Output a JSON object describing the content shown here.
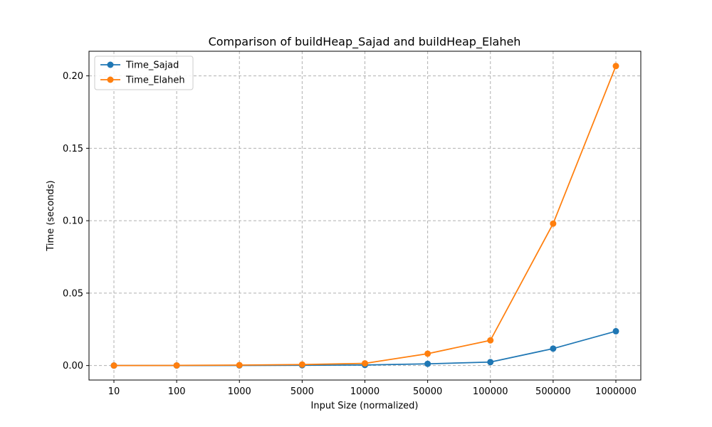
{
  "chart_data": {
    "type": "line",
    "title": "Comparison of buildHeap_Sajad and buildHeap_Elaheh",
    "xlabel": "Input Size (normalized)",
    "ylabel": "Time (seconds)",
    "categories": [
      "10",
      "100",
      "1000",
      "5000",
      "10000",
      "50000",
      "100000",
      "500000",
      "1000000"
    ],
    "ylim": [
      -0.01,
      0.217
    ],
    "yticks": [
      0.0,
      0.05,
      0.1,
      0.15,
      0.2
    ],
    "ytick_labels": [
      "0.00",
      "0.05",
      "0.10",
      "0.15",
      "0.20"
    ],
    "grid": true,
    "legend_position": "top-left",
    "series": [
      {
        "name": "Time_Sajad",
        "color": "#1f77b4",
        "values": [
          5e-06,
          2e-05,
          0.0001,
          0.0002,
          0.0004,
          0.0012,
          0.0024,
          0.0117,
          0.0237
        ]
      },
      {
        "name": "Time_Elaheh",
        "color": "#ff7f0e",
        "values": [
          1e-05,
          0.0001,
          0.0003,
          0.0007,
          0.0015,
          0.0082,
          0.0174,
          0.098,
          0.2068
        ]
      }
    ]
  }
}
